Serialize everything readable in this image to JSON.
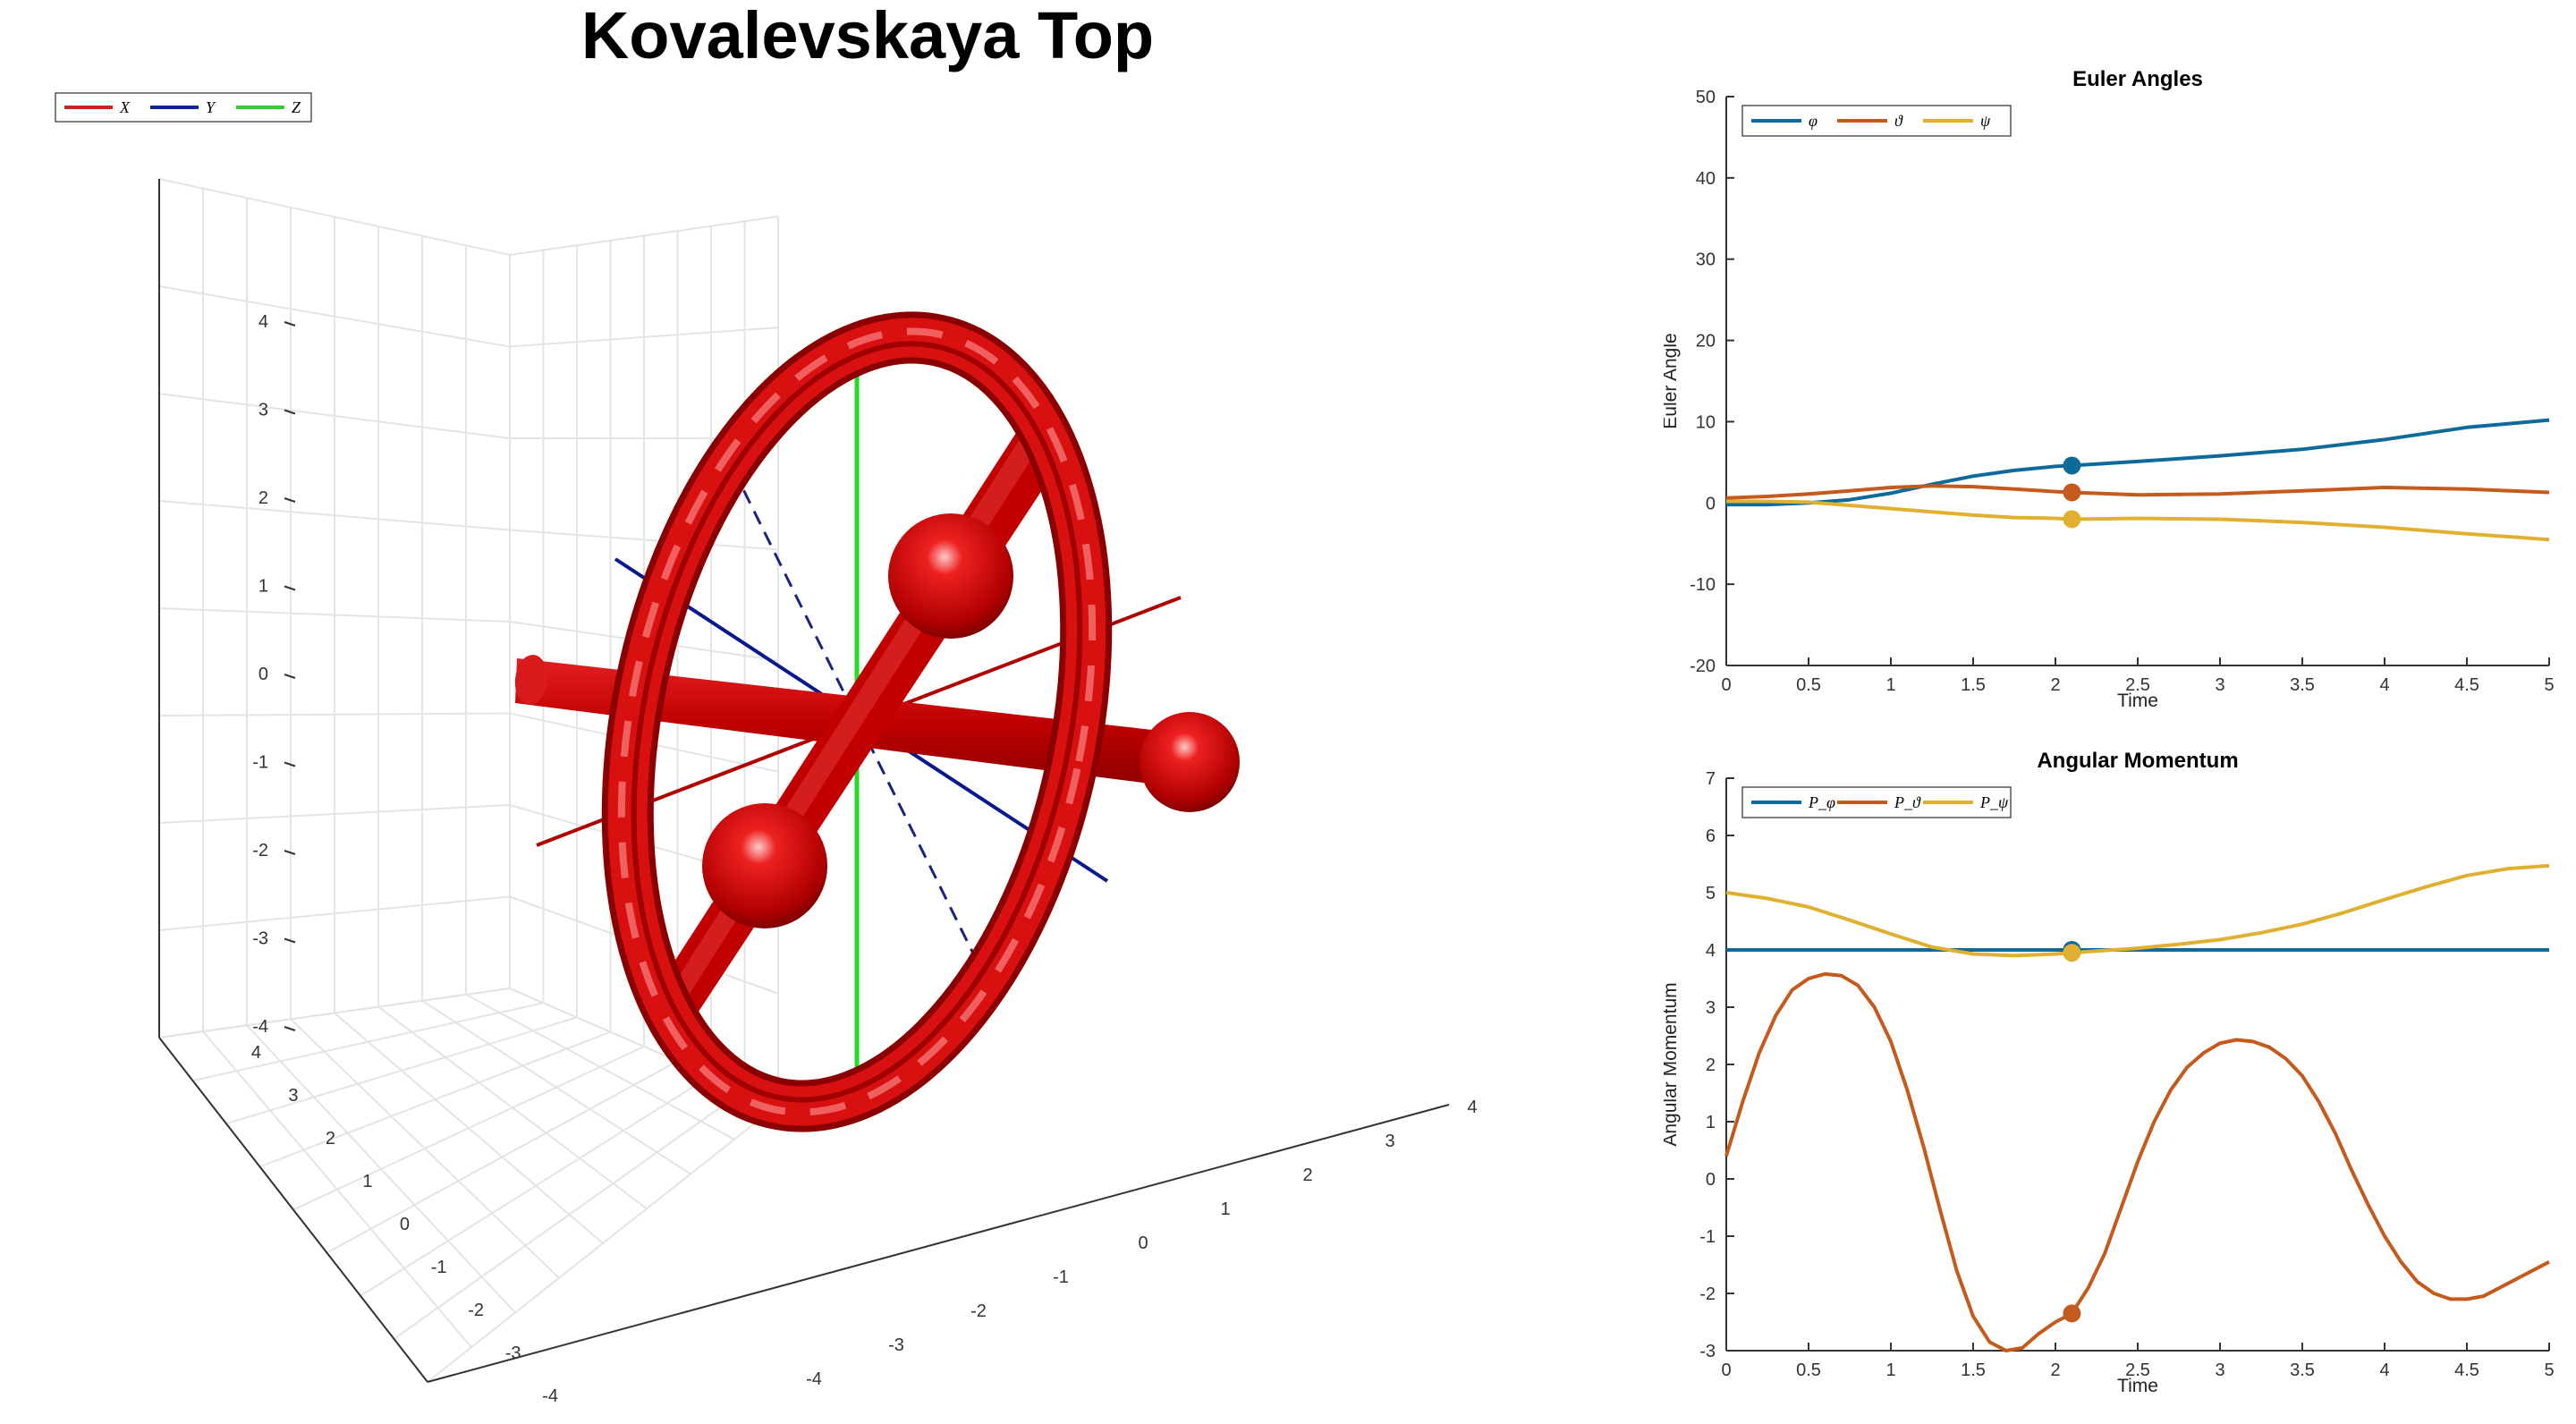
{
  "window": {
    "title": "Kovalevskaya Top"
  },
  "colors": {
    "background": "#ffffff",
    "top_body": "#d40000",
    "x_axis": "#c00000",
    "y_axis": "#00008b",
    "z_axis": "#22dd22",
    "grid": "#e6e6e6"
  },
  "scene3d": {
    "legend": [
      {
        "label": "X",
        "color": "#d02020"
      },
      {
        "label": "Y",
        "color": "#1020a0"
      },
      {
        "label": "Z",
        "color": "#30d030"
      }
    ],
    "z_ticks": [
      "4",
      "3",
      "2",
      "1",
      "0",
      "-1",
      "-2",
      "-3",
      "-4"
    ],
    "y_ticks": [
      "4",
      "3",
      "2",
      "1",
      "0",
      "-1",
      "-2",
      "-3",
      "-4"
    ],
    "x_ticks": [
      "-4",
      "-3",
      "-2",
      "-1",
      "0",
      "1",
      "2",
      "3",
      "4"
    ],
    "ranges": {
      "x": [
        -4,
        4
      ],
      "y": [
        -4,
        4
      ],
      "z": [
        -4,
        4
      ]
    },
    "grid": true
  },
  "chart_data": [
    {
      "type": "line",
      "title": "Euler Angles",
      "xlabel": "Time",
      "ylabel": "Euler Angle",
      "xlim": [
        0,
        5
      ],
      "ylim": [
        -20,
        50
      ],
      "x_ticks": [
        "0",
        "0.5",
        "1",
        "1.5",
        "2",
        "2.5",
        "3",
        "3.5",
        "4",
        "4.5",
        "5"
      ],
      "y_ticks": [
        "50",
        "40",
        "30",
        "20",
        "10",
        "0",
        "-10",
        "-20"
      ],
      "legend_position": "top-left",
      "grid": false,
      "marker_x": 2.1,
      "series": [
        {
          "name": "φ",
          "color": "#0e6a99",
          "x": [
            0,
            0.25,
            0.5,
            0.75,
            1,
            1.25,
            1.5,
            1.75,
            2,
            2.1,
            2.5,
            3,
            3.5,
            4,
            4.5,
            5
          ],
          "y": [
            -0.2,
            -0.2,
            0,
            0.4,
            1.2,
            2.3,
            3.3,
            4,
            4.5,
            4.6,
            5.1,
            5.8,
            6.6,
            7.8,
            9.3,
            10.2
          ]
        },
        {
          "name": "ϑ",
          "color": "#c45a1c",
          "x": [
            0,
            0.25,
            0.5,
            0.75,
            1,
            1.25,
            1.5,
            1.75,
            2,
            2.1,
            2.5,
            3,
            3.5,
            4,
            4.5,
            5
          ],
          "y": [
            0.6,
            0.8,
            1.1,
            1.5,
            1.9,
            2.1,
            2,
            1.7,
            1.4,
            1.3,
            1,
            1.1,
            1.5,
            1.9,
            1.7,
            1.3
          ]
        },
        {
          "name": "ψ",
          "color": "#e0b030",
          "x": [
            0,
            0.25,
            0.5,
            0.75,
            1,
            1.25,
            1.5,
            1.75,
            2,
            2.1,
            2.5,
            3,
            3.5,
            4,
            4.5,
            5
          ],
          "y": [
            0.2,
            0.2,
            0.1,
            -0.3,
            -0.7,
            -1.1,
            -1.5,
            -1.8,
            -1.9,
            -2,
            -1.9,
            -2,
            -2.4,
            -3,
            -3.8,
            -4.5
          ]
        }
      ]
    },
    {
      "type": "line",
      "title": "Angular Momentum",
      "xlabel": "Time",
      "ylabel": "Angular Momentum",
      "xlim": [
        0,
        5
      ],
      "ylim": [
        -3,
        7
      ],
      "x_ticks": [
        "0",
        "0.5",
        "1",
        "1.5",
        "2",
        "2.5",
        "3",
        "3.5",
        "4",
        "4.5",
        "5"
      ],
      "y_ticks": [
        "7",
        "6",
        "5",
        "4",
        "3",
        "2",
        "1",
        "0",
        "-1",
        "-2",
        "-3"
      ],
      "legend_position": "top-left",
      "grid": false,
      "marker_x": 2.1,
      "series": [
        {
          "name": "P_φ",
          "color": "#0e6a99",
          "x": [
            0,
            5
          ],
          "y": [
            4,
            4
          ]
        },
        {
          "name": "P_ϑ",
          "color": "#c45a1c",
          "x": [
            0,
            0.1,
            0.2,
            0.3,
            0.4,
            0.5,
            0.6,
            0.7,
            0.8,
            0.9,
            1,
            1.1,
            1.2,
            1.3,
            1.4,
            1.5,
            1.6,
            1.7,
            1.8,
            1.9,
            2,
            2.1,
            2.2,
            2.3,
            2.4,
            2.5,
            2.6,
            2.7,
            2.8,
            2.9,
            3,
            3.1,
            3.2,
            3.3,
            3.4,
            3.5,
            3.6,
            3.7,
            3.8,
            3.9,
            4,
            4.1,
            4.2,
            4.3,
            4.4,
            4.5,
            4.6,
            4.7,
            4.8,
            4.9,
            5
          ],
          "y": [
            0.4,
            1.35,
            2.2,
            2.85,
            3.3,
            3.5,
            3.58,
            3.55,
            3.38,
            3,
            2.4,
            1.55,
            0.55,
            -0.55,
            -1.6,
            -2.4,
            -2.85,
            -3,
            -2.95,
            -2.7,
            -2.5,
            -2.35,
            -1.9,
            -1.3,
            -0.5,
            0.3,
            1,
            1.55,
            1.95,
            2.2,
            2.37,
            2.43,
            2.4,
            2.3,
            2.1,
            1.8,
            1.35,
            0.8,
            0.15,
            -0.45,
            -1,
            -1.45,
            -1.8,
            -2,
            -2.1,
            -2.1,
            -2.05,
            -1.9,
            -1.75,
            -1.6,
            -1.45
          ]
        },
        {
          "name": "P_ψ",
          "color": "#e0b030",
          "x": [
            0,
            0.25,
            0.5,
            0.75,
            1,
            1.25,
            1.5,
            1.75,
            2,
            2.1,
            2.25,
            2.5,
            2.75,
            3,
            3.25,
            3.5,
            3.75,
            4,
            4.25,
            4.5,
            4.75,
            5
          ],
          "y": [
            5,
            4.9,
            4.75,
            4.52,
            4.28,
            4.05,
            3.93,
            3.9,
            3.93,
            3.95,
            3.98,
            4.03,
            4.1,
            4.18,
            4.3,
            4.45,
            4.65,
            4.88,
            5.1,
            5.3,
            5.42,
            5.47
          ]
        }
      ]
    }
  ]
}
